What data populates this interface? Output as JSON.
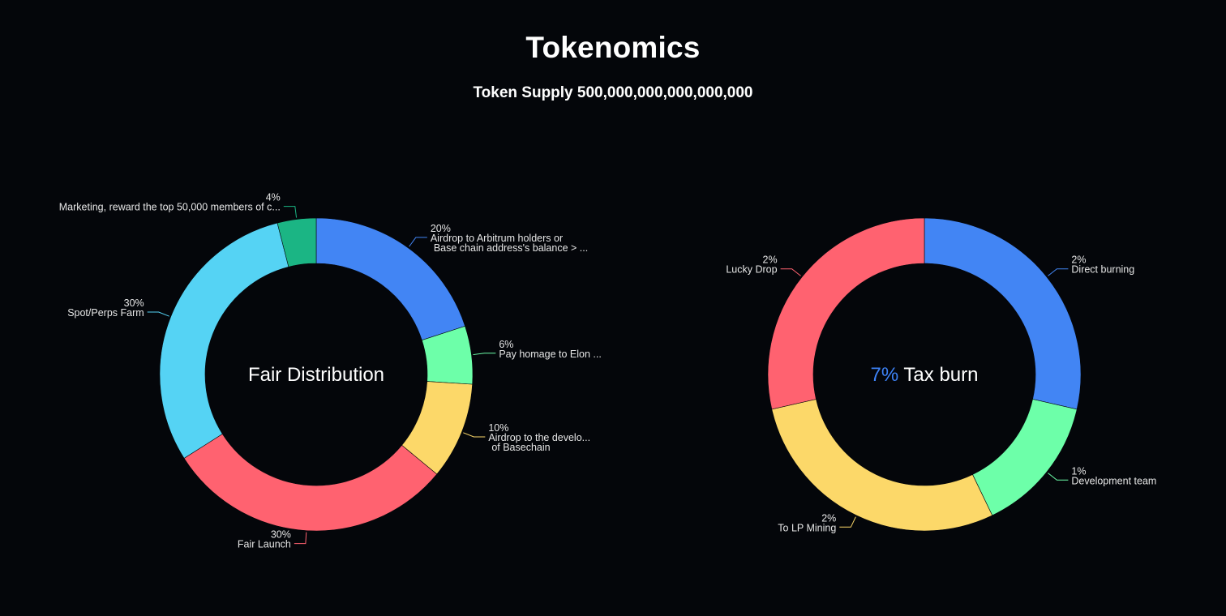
{
  "header": {
    "title": "Tokenomics",
    "subtitle": "Token Supply 500,000,000,000,000,000"
  },
  "colors": {
    "background": "#04060a",
    "blue": "#4285f4",
    "green": "#6dffa9",
    "yellow": "#fcd869",
    "red": "#ff6270",
    "cyan": "#55d3f4",
    "teal": "#1bb584",
    "accent_text": "#3d82f6"
  },
  "chart_data": [
    {
      "type": "pie",
      "center_label": "Fair Distribution",
      "slices": [
        {
          "percent_label": "20%",
          "label_lines": [
            "Airdrop to Arbitrum holders or",
            "Base chain address's balance > ..."
          ],
          "value": 20,
          "color": "#4285f4"
        },
        {
          "percent_label": "6%",
          "label_lines": [
            "Pay homage to Elon ..."
          ],
          "value": 6,
          "color": "#6dffa9"
        },
        {
          "percent_label": "10%",
          "label_lines": [
            "Airdrop to the develo...",
            "of Basechain"
          ],
          "value": 10,
          "color": "#fcd869"
        },
        {
          "percent_label": "30%",
          "label_lines": [
            "Fair Launch"
          ],
          "value": 30,
          "color": "#ff6270"
        },
        {
          "percent_label": "30%",
          "label_lines": [
            "Spot/Perps Farm"
          ],
          "value": 30,
          "color": "#55d3f4"
        },
        {
          "percent_label": "4%",
          "label_lines": [
            "Marketing, reward the top 50,000 members of c..."
          ],
          "value": 4,
          "color": "#1bb584"
        }
      ]
    },
    {
      "type": "pie",
      "center_highlight": "7%",
      "center_label": "Tax burn",
      "slices": [
        {
          "percent_label": "2%",
          "label_lines": [
            "Direct burning"
          ],
          "value": 2,
          "color": "#4285f4"
        },
        {
          "percent_label": "1%",
          "label_lines": [
            "Development team"
          ],
          "value": 1,
          "color": "#6dffa9"
        },
        {
          "percent_label": "2%",
          "label_lines": [
            "To LP Mining"
          ],
          "value": 2,
          "color": "#fcd869"
        },
        {
          "percent_label": "2%",
          "label_lines": [
            "Lucky Drop"
          ],
          "value": 2,
          "color": "#ff6270"
        }
      ]
    }
  ]
}
